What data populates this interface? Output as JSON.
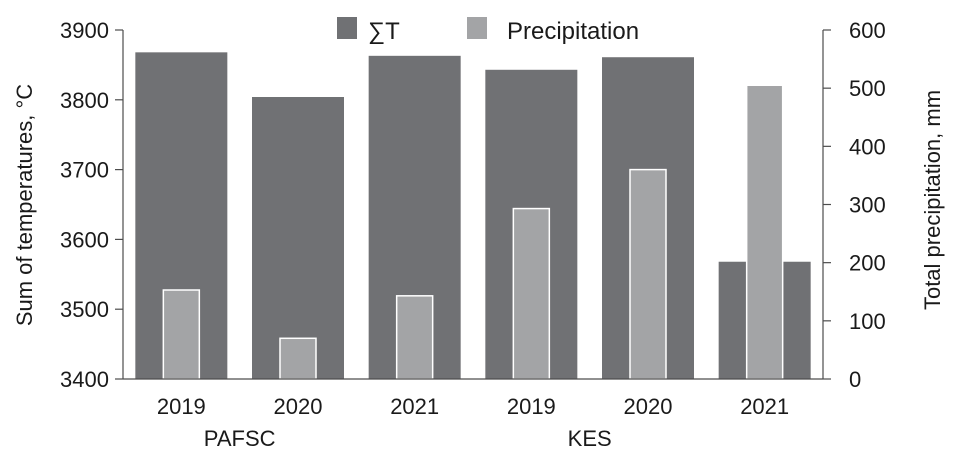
{
  "chart_data": {
    "type": "bar",
    "categories": [
      "2019",
      "2020",
      "2021",
      "2019",
      "2020",
      "2021"
    ],
    "groups": [
      {
        "label": "PAFSC",
        "categories": [
          "2019",
          "2020",
          "2021"
        ]
      },
      {
        "label": "KES",
        "categories": [
          "2019",
          "2020",
          "2021"
        ]
      }
    ],
    "series": [
      {
        "name": "∑T",
        "axis": "left",
        "values": [
          3868,
          3804,
          3863,
          3843,
          3861,
          3568
        ],
        "color": "#707174"
      },
      {
        "name": "Precipitation",
        "axis": "right",
        "values": [
          153,
          70,
          143,
          293,
          360,
          505
        ],
        "color": "#a3a4a6"
      }
    ],
    "ylabel": "Sum of temperatures, °C",
    "ylim": [
      3400,
      3900
    ],
    "yticks": [
      3400,
      3500,
      3600,
      3700,
      3800,
      3900
    ],
    "y2label": "Total precipitation, mm",
    "y2lim": [
      0,
      600
    ],
    "y2ticks": [
      0,
      100,
      200,
      300,
      400,
      500,
      600
    ],
    "legend": {
      "position": "top-center",
      "entries": [
        "∑T",
        "Precipitation"
      ]
    },
    "grid": false
  }
}
